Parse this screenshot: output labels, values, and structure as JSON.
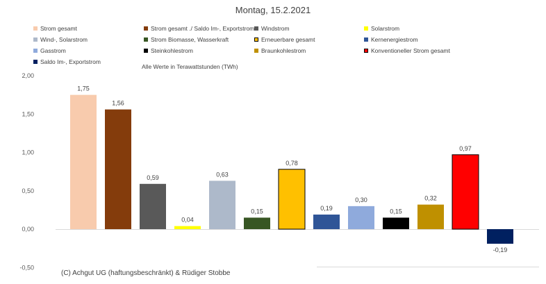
{
  "chart_data": {
    "type": "bar",
    "title": "Montag, 15.2.2021",
    "note": "Alle Werte in Terawattstunden (TWh)",
    "copyright": "(C) Achgut UG (haftungsbeschränkt) & Rüdiger Stobbe",
    "ylim": [
      -0.5,
      2.0
    ],
    "yticks": [
      "2,00",
      "1,50",
      "1,00",
      "0,50",
      "0,00",
      "-0,50"
    ],
    "grid": false,
    "legend_position": "top",
    "categories": [
      "Strom gesamt",
      "Strom gesamt ./ Saldo Im-, Exportstrom",
      "Windstrom",
      "Solarstrom",
      "Wind-, Solarstrom",
      "Strom Biomasse, Wasserkraft",
      "Erneuerbare gesamt",
      "Kernenergiestrom",
      "Gasstrom",
      "Steinkohlestrom",
      "Braunkohlestrom",
      "Konventioneller Strom gesamt",
      "Saldo Im-, Exportstrom"
    ],
    "values": [
      1.75,
      1.56,
      0.59,
      0.04,
      0.63,
      0.15,
      0.78,
      0.19,
      0.3,
      0.15,
      0.32,
      0.97,
      -0.19
    ],
    "value_labels": [
      "1,75",
      "1,56",
      "0,59",
      "0,04",
      "0,63",
      "0,15",
      "0,78",
      "0,19",
      "0,30",
      "0,15",
      "0,32",
      "0,97",
      "-0,19"
    ],
    "colors": [
      "#f8cbad",
      "#843c0c",
      "#595959",
      "#ffff00",
      "#adb9ca",
      "#375623",
      "#ffc000",
      "#2f5597",
      "#8faadc",
      "#000000",
      "#bf9000",
      "#ff0000",
      "#002060"
    ],
    "outlined": [
      false,
      false,
      false,
      false,
      false,
      false,
      true,
      false,
      false,
      false,
      false,
      true,
      false
    ]
  }
}
